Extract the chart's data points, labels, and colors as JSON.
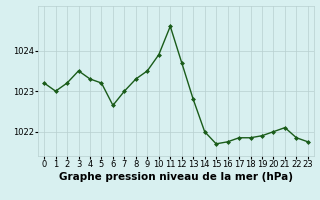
{
  "x": [
    0,
    1,
    2,
    3,
    4,
    5,
    6,
    7,
    8,
    9,
    10,
    11,
    12,
    13,
    14,
    15,
    16,
    17,
    18,
    19,
    20,
    21,
    22,
    23
  ],
  "y": [
    1023.2,
    1023.0,
    1023.2,
    1023.5,
    1023.3,
    1023.2,
    1022.65,
    1023.0,
    1023.3,
    1023.5,
    1023.9,
    1024.6,
    1023.7,
    1022.8,
    1022.0,
    1021.7,
    1021.75,
    1021.85,
    1021.85,
    1021.9,
    1022.0,
    1022.1,
    1021.85,
    1021.75
  ],
  "line_color": "#1a5c1a",
  "marker": "D",
  "marker_size": 2.0,
  "line_width": 1.0,
  "bg_color": "#d8f0f0",
  "grid_color": "#b8d0d0",
  "xlabel": "Graphe pression niveau de la mer (hPa)",
  "xlabel_fontsize": 7.5,
  "tick_fontsize": 6.0,
  "ylim": [
    1021.4,
    1025.1
  ],
  "yticks": [
    1022,
    1023,
    1024
  ],
  "xticks": [
    0,
    1,
    2,
    3,
    4,
    5,
    6,
    7,
    8,
    9,
    10,
    11,
    12,
    13,
    14,
    15,
    16,
    17,
    18,
    19,
    20,
    21,
    22,
    23
  ]
}
